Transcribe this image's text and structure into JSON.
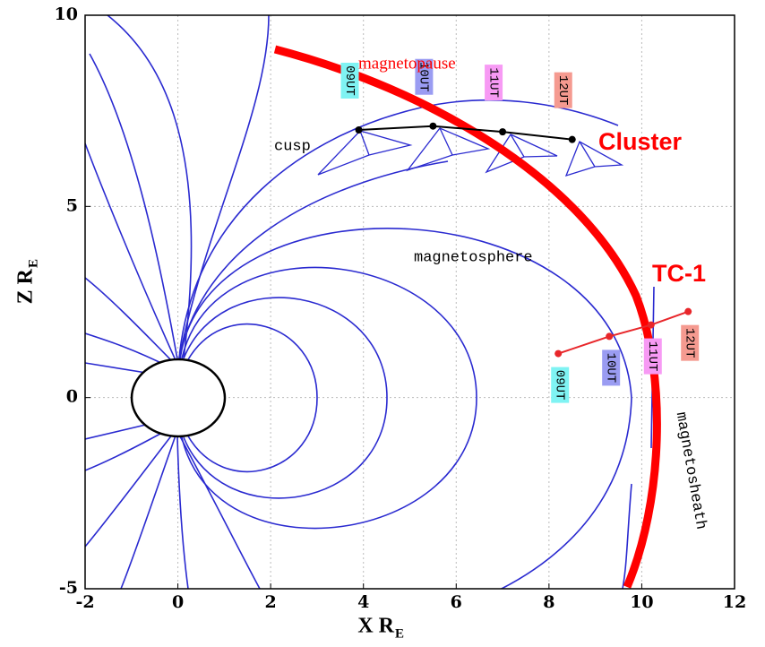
{
  "chart_data": {
    "type": "line",
    "xlim": [
      -2,
      12
    ],
    "xticks": [
      -2,
      0,
      2,
      4,
      6,
      8,
      10,
      12
    ],
    "ylim": [
      -5,
      10
    ],
    "yticks": [
      -5,
      0,
      5,
      10
    ],
    "grid": true,
    "xlabel": "X R",
    "xlabel_sub": "E",
    "ylabel": "Z R",
    "ylabel_sub": "E",
    "annotations": {
      "magnetopause": "magnetopause",
      "cluster": "Cluster",
      "tc1": "TC-1",
      "cusp": "cusp",
      "magnetosphere": "magnetosphere",
      "magnetosheath": "magnetosheath"
    },
    "label_colors": [
      "#7ff3f3",
      "#9a9cf2",
      "#f79af4",
      "#f59a90"
    ],
    "series": [
      {
        "color": "#000000",
        "x": [
          3.9,
          5.5,
          7.0,
          8.5
        ],
        "values": [
          7.0,
          7.1,
          6.95,
          6.75
        ],
        "point_labels": [
          "09UT",
          "10UT",
          "11UT",
          "12UT"
        ]
      },
      {
        "color": "#e8262a",
        "x": [
          8.2,
          9.3,
          10.2,
          11.0
        ],
        "values": [
          1.15,
          1.6,
          1.9,
          2.25
        ],
        "point_labels": [
          "09UT",
          "10UT",
          "11UT",
          "12UT"
        ]
      }
    ]
  }
}
